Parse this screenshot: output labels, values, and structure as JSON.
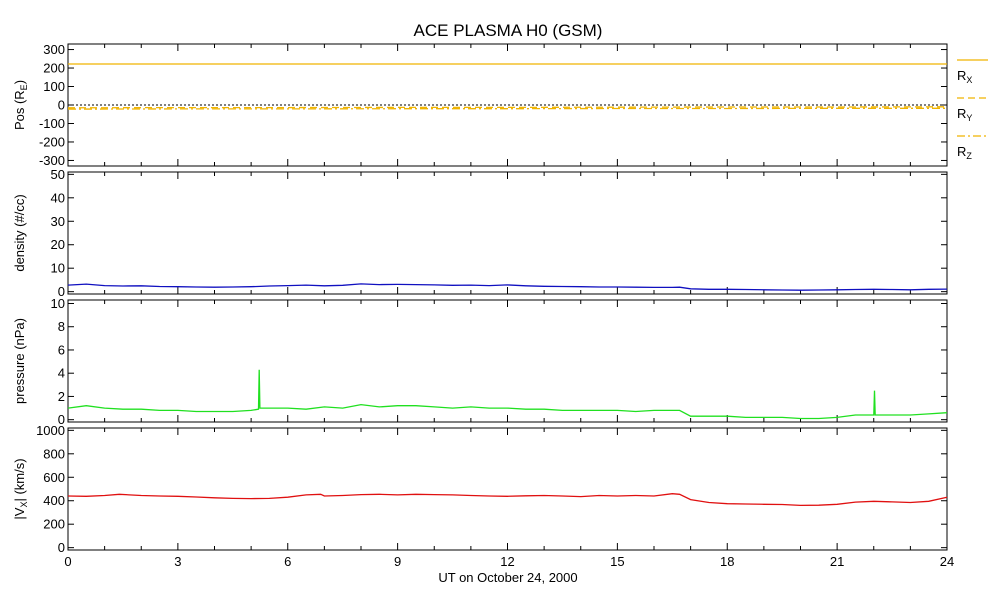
{
  "chart_data": [
    {
      "type": "line",
      "title": "ACE PLASMA H0 (GSM)",
      "ylabel": "Pos (R",
      "ylabel_sub": "E",
      "ylabel_end": ")",
      "ylim": [
        -330,
        330
      ],
      "yticks": [
        300,
        200,
        100,
        0,
        -100,
        -200,
        -300
      ],
      "xlim": [
        0,
        24
      ],
      "series": [
        {
          "name": "R",
          "name_sub": "X",
          "color": "#f0b400",
          "dash": "solid",
          "x": [
            0,
            24
          ],
          "y": [
            222,
            222
          ]
        },
        {
          "name": "R",
          "name_sub": "Y",
          "color": "#f0b400",
          "dash": "dashed",
          "x": [
            0,
            3,
            6,
            9,
            12,
            15,
            18,
            21,
            24
          ],
          "y": [
            -15,
            -14,
            -14,
            -13,
            -13,
            -12,
            -11,
            -11,
            -10
          ]
        },
        {
          "name": "R",
          "name_sub": "Z",
          "color": "#f0b400",
          "dash": "dashdot",
          "x": [
            0,
            3,
            6,
            9,
            12,
            15,
            18,
            21,
            24
          ],
          "y": [
            -22,
            -21,
            -21,
            -20,
            -20,
            -19,
            -19,
            -18,
            -18
          ]
        }
      ],
      "reference_line": {
        "y": 0,
        "style": "dotted",
        "color": "#000000"
      }
    },
    {
      "type": "line",
      "ylabel": "density (#/cc)",
      "ylim": [
        -1,
        51
      ],
      "yticks": [
        50,
        40,
        30,
        20,
        10,
        0
      ],
      "xlim": [
        0,
        24
      ],
      "series": [
        {
          "color": "#1010c0",
          "x": [
            0,
            0.5,
            1,
            1.5,
            2,
            2.5,
            3,
            3.5,
            4,
            4.5,
            5,
            5.5,
            6,
            6.5,
            7,
            7.5,
            8,
            8.5,
            9,
            9.5,
            10,
            10.5,
            11,
            11.5,
            12,
            12.5,
            13,
            13.5,
            14,
            14.5,
            15,
            15.5,
            16,
            16.5,
            16.7,
            17,
            17.5,
            18,
            18.5,
            19,
            19.5,
            20,
            20.5,
            21,
            21.5,
            22,
            22.5,
            23,
            23.5,
            24
          ],
          "y": [
            2.8,
            3.2,
            2.6,
            2.4,
            2.5,
            2.2,
            2.1,
            2.0,
            1.9,
            2.0,
            2.1,
            2.4,
            2.6,
            2.8,
            2.5,
            2.7,
            3.3,
            3.0,
            3.1,
            3.0,
            2.9,
            2.7,
            2.8,
            2.6,
            2.9,
            2.5,
            2.3,
            2.2,
            2.1,
            2.0,
            2.0,
            1.9,
            1.8,
            1.8,
            1.9,
            1.2,
            1.0,
            1.0,
            0.9,
            0.8,
            0.7,
            0.6,
            0.7,
            0.8,
            0.9,
            1.0,
            0.9,
            0.8,
            1.0,
            1.1
          ]
        }
      ]
    },
    {
      "type": "line",
      "ylabel": "pressure (nPa)",
      "ylim": [
        -0.2,
        10.3
      ],
      "yticks": [
        10,
        8,
        6,
        4,
        2,
        0
      ],
      "xlim": [
        0,
        24
      ],
      "series": [
        {
          "color": "#20e020",
          "x": [
            0,
            0.5,
            1,
            1.5,
            2,
            2.5,
            3,
            3.5,
            4,
            4.5,
            5,
            5.2,
            5.22,
            5.24,
            5.5,
            6,
            6.5,
            7,
            7.5,
            8,
            8.5,
            9,
            9.5,
            10,
            10.5,
            11,
            11.5,
            12,
            12.5,
            13,
            13.5,
            14,
            14.5,
            15,
            15.5,
            16,
            16.5,
            16.7,
            17,
            17.5,
            18,
            18.5,
            19,
            19.5,
            20,
            20.5,
            21,
            21.5,
            22,
            22.02,
            22.04,
            22.5,
            23,
            23.5,
            24
          ],
          "y": [
            1.0,
            1.2,
            1.0,
            0.9,
            0.9,
            0.8,
            0.8,
            0.7,
            0.7,
            0.7,
            0.8,
            0.9,
            4.3,
            1.0,
            1.0,
            1.0,
            0.9,
            1.1,
            1.0,
            1.3,
            1.1,
            1.2,
            1.2,
            1.1,
            1.0,
            1.1,
            1.0,
            1.0,
            0.9,
            0.9,
            0.8,
            0.8,
            0.8,
            0.8,
            0.7,
            0.8,
            0.8,
            0.8,
            0.3,
            0.3,
            0.3,
            0.2,
            0.2,
            0.2,
            0.1,
            0.1,
            0.2,
            0.4,
            0.4,
            2.5,
            0.4,
            0.4,
            0.4,
            0.5,
            0.6
          ]
        }
      ]
    },
    {
      "type": "line",
      "ylabel": "|V",
      "ylabel_sub": "X",
      "ylabel_end": "| (km/s)",
      "ylim": [
        -20,
        1020
      ],
      "yticks": [
        1000,
        800,
        600,
        400,
        200,
        0
      ],
      "xlim": [
        0,
        24
      ],
      "xticks": [
        0,
        3,
        6,
        9,
        12,
        15,
        18,
        21,
        24
      ],
      "xlabel": "UT on October 24, 2000",
      "series": [
        {
          "color": "#e01010",
          "x": [
            0,
            0.5,
            1,
            1.4,
            2,
            2.5,
            3,
            3.5,
            4,
            4.5,
            5,
            5.5,
            6,
            6.5,
            6.9,
            7,
            7.5,
            8,
            8.5,
            9,
            9.5,
            10,
            10.5,
            11,
            11.5,
            12,
            12.5,
            13,
            13.5,
            14,
            14.5,
            15,
            15.5,
            16,
            16.5,
            16.7,
            17,
            17.5,
            18,
            18.5,
            19,
            19.5,
            20,
            20.5,
            21,
            21.5,
            22,
            22.5,
            23,
            23.5,
            24
          ],
          "y": [
            440,
            438,
            445,
            455,
            445,
            440,
            438,
            432,
            425,
            420,
            418,
            420,
            430,
            450,
            455,
            440,
            445,
            452,
            455,
            450,
            455,
            452,
            450,
            445,
            440,
            438,
            442,
            445,
            440,
            435,
            445,
            440,
            445,
            440,
            460,
            455,
            410,
            385,
            375,
            372,
            370,
            368,
            360,
            362,
            370,
            388,
            395,
            390,
            385,
            395,
            430
          ]
        }
      ]
    }
  ]
}
